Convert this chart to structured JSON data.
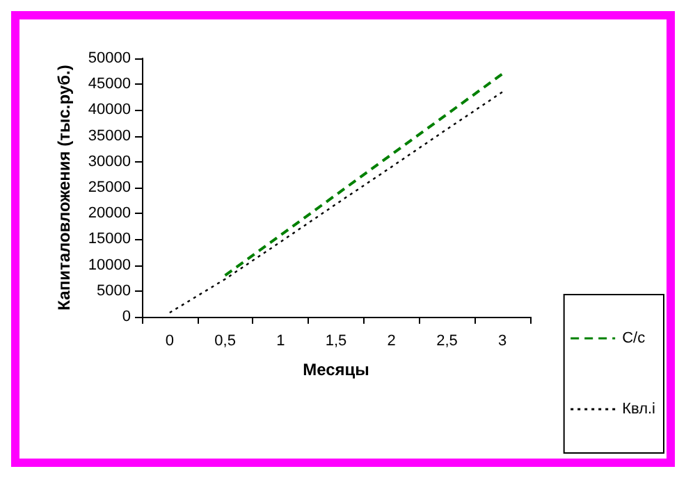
{
  "chart_data": {
    "type": "line",
    "xlabel": "Месяцы",
    "ylabel": "Капиталовложения (тыс.руб.)",
    "categories": [
      "0",
      "0,5",
      "1",
      "1,5",
      "2",
      "2,5",
      "3"
    ],
    "series": [
      {
        "name": "С/с",
        "color": "#008000",
        "line_style": "dashed",
        "values": [
          null,
          8000,
          15800,
          23600,
          31400,
          39200,
          47000
        ]
      },
      {
        "name": "Квл.i",
        "color": "#000000",
        "line_style": "dotted",
        "values": [
          800,
          7300,
          14500,
          21800,
          29000,
          36300,
          43500
        ]
      }
    ],
    "ylim": [
      0,
      50000
    ],
    "yticks": [
      0,
      5000,
      10000,
      15000,
      20000,
      25000,
      30000,
      35000,
      40000,
      45000,
      50000
    ],
    "grid": false,
    "legend": "bottom right",
    "marker": "none"
  }
}
